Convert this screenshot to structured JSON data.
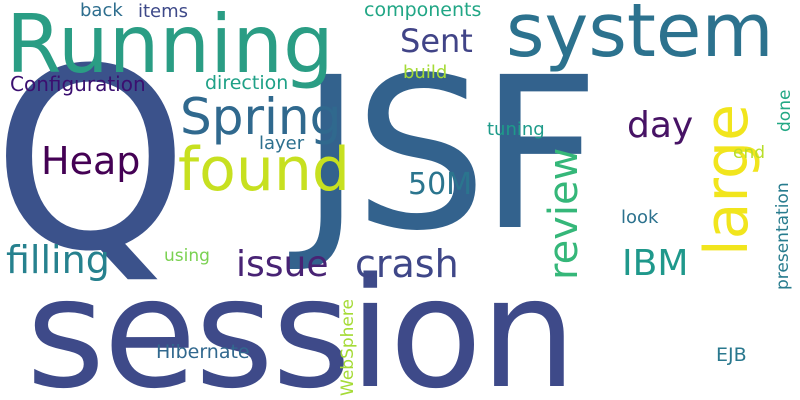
{
  "background": "#ffffff",
  "words": [
    {
      "text": "session",
      "color": "#3e4a89"
    },
    {
      "text": "JSF",
      "color": "#33628d"
    },
    {
      "text": "Q",
      "color": "#3b528b"
    },
    {
      "text": "Running",
      "color": "#2a9d84"
    },
    {
      "text": "system",
      "color": "#2c728e"
    },
    {
      "text": "found",
      "color": "#c7e020"
    },
    {
      "text": "large",
      "color": "#f1e51d"
    },
    {
      "text": "Spring",
      "color": "#30698e"
    },
    {
      "text": "Heap",
      "color": "#440154"
    },
    {
      "text": "review",
      "color": "#35b779"
    },
    {
      "text": "crash",
      "color": "#3f4788"
    },
    {
      "text": "filling",
      "color": "#26818e"
    },
    {
      "text": "issue",
      "color": "#482374"
    },
    {
      "text": "IBM",
      "color": "#1f988b"
    },
    {
      "text": "Sent",
      "color": "#414487"
    },
    {
      "text": "day",
      "color": "#471365"
    },
    {
      "text": "50M",
      "color": "#2b758e"
    },
    {
      "text": "Configuration",
      "color": "#3b0f70"
    },
    {
      "text": "components",
      "color": "#21a685"
    },
    {
      "text": "direction",
      "color": "#1fa187"
    },
    {
      "text": "back",
      "color": "#2e6e8e"
    },
    {
      "text": "items",
      "color": "#3e4989"
    },
    {
      "text": "build",
      "color": "#a5db36"
    },
    {
      "text": "tuning",
      "color": "#1e9b8a"
    },
    {
      "text": "layer",
      "color": "#2d708e"
    },
    {
      "text": "done",
      "color": "#22a884"
    },
    {
      "text": "end",
      "color": "#b8de29"
    },
    {
      "text": "look",
      "color": "#2c728e"
    },
    {
      "text": "using",
      "color": "#7ad151"
    },
    {
      "text": "presentation",
      "color": "#287c8e"
    },
    {
      "text": "Hibernate",
      "color": "#31688e"
    },
    {
      "text": "WebSphere",
      "color": "#a5db36"
    },
    {
      "text": "EJB",
      "color": "#2a788e"
    }
  ]
}
